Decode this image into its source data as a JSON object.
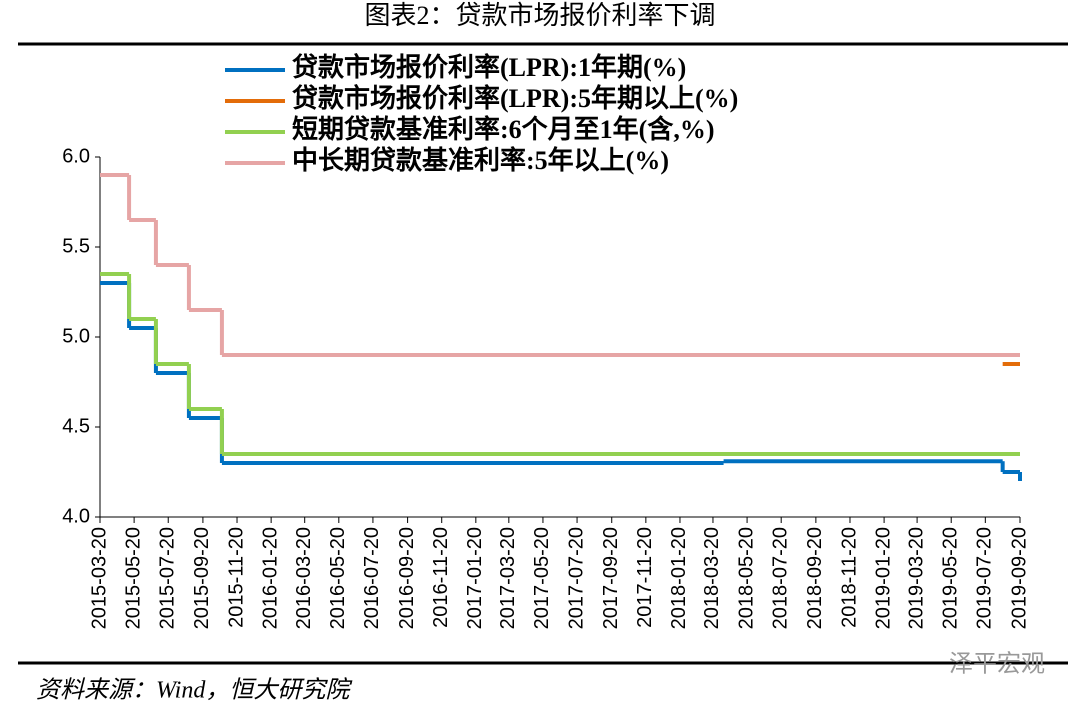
{
  "chart_data": {
    "type": "step-line",
    "title": "图表2：贷款市场报价利率下调",
    "source": "资料来源：Wind，恒大研究院",
    "watermark": "泽平宏观",
    "xlim": [
      "2015-03-20",
      "2019-09-20"
    ],
    "xticks": [
      "2015-03-20",
      "2015-05-20",
      "2015-07-20",
      "2015-09-20",
      "2015-11-20",
      "2016-01-20",
      "2016-03-20",
      "2016-05-20",
      "2016-07-20",
      "2016-09-20",
      "2016-11-20",
      "2017-01-20",
      "2017-03-20",
      "2017-05-20",
      "2017-07-20",
      "2017-09-20",
      "2017-11-20",
      "2018-01-20",
      "2018-03-20",
      "2018-05-20",
      "2018-07-20",
      "2018-09-20",
      "2018-11-20",
      "2019-01-20",
      "2019-03-20",
      "2019-05-20",
      "2019-07-20",
      "2019-09-20"
    ],
    "ylim": [
      4.0,
      6.0
    ],
    "yticks": [
      {
        "value": 4.0,
        "label": "4.0"
      },
      4.5,
      {
        "value": 5.0,
        "label": "5.0"
      },
      5.5,
      {
        "value": 6.0,
        "label": "6.0"
      }
    ],
    "series": [
      {
        "name": "贷款市场报价利率(LPR):1年期(%)",
        "color": "#0070c0",
        "x": [
          "2015-03-20",
          "2015-05-11",
          "2015-06-28",
          "2015-08-26",
          "2015-10-24",
          "2018-04-08",
          "2019-08-20",
          "2019-09-20"
        ],
        "values": [
          5.3,
          5.05,
          4.8,
          4.55,
          4.3,
          4.31,
          4.25,
          4.2
        ]
      },
      {
        "name": "贷款市场报价利率(LPR):5年期以上(%)",
        "color": "#e36c09",
        "x": [
          "2019-08-20",
          "2019-09-20"
        ],
        "values": [
          4.85,
          4.85
        ]
      },
      {
        "name": "短期贷款基准利率:6个月至1年(含,%)",
        "color": "#92d050",
        "x": [
          "2015-03-20",
          "2015-05-11",
          "2015-06-28",
          "2015-08-26",
          "2015-10-24",
          "2019-09-20"
        ],
        "values": [
          5.35,
          5.1,
          4.85,
          4.6,
          4.35,
          4.35
        ]
      },
      {
        "name": "中长期贷款基准利率:5年以上(%)",
        "color": "#e6a5a5",
        "x": [
          "2015-03-20",
          "2015-05-11",
          "2015-06-28",
          "2015-08-26",
          "2015-10-24",
          "2019-09-20"
        ],
        "values": [
          5.9,
          5.65,
          5.4,
          5.15,
          4.9,
          4.9
        ]
      }
    ]
  }
}
